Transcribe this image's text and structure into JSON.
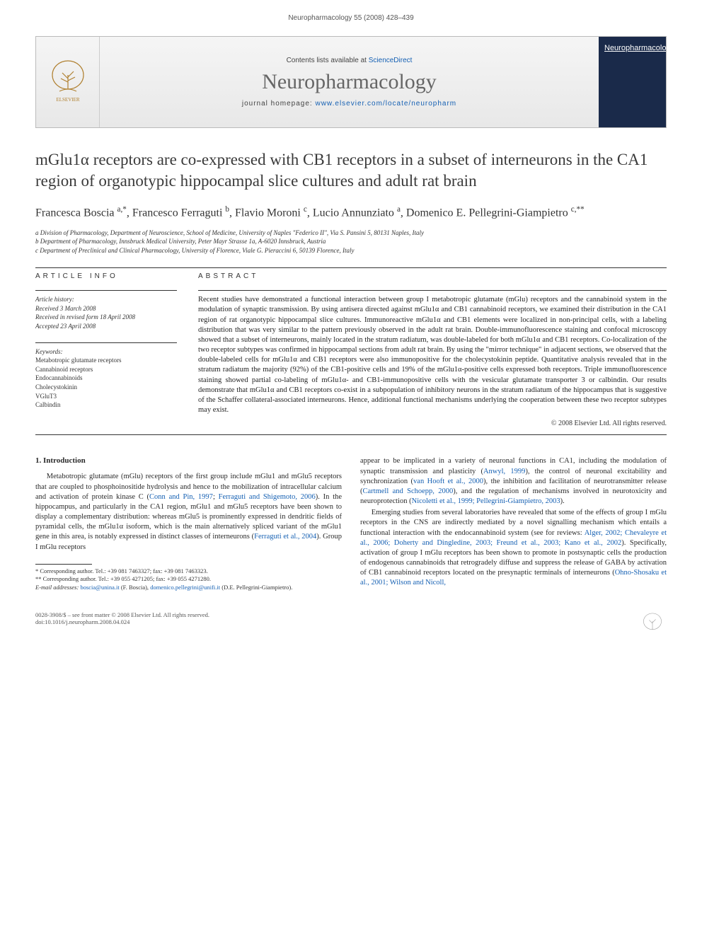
{
  "page_header": "Neuropharmacology 55 (2008) 428–439",
  "banner": {
    "contents_prefix": "Contents lists available at ",
    "contents_link": "ScienceDirect",
    "journal": "Neuropharmacology",
    "homepage_prefix": "journal homepage: ",
    "homepage_url": "www.elsevier.com/locate/neuropharm",
    "cover_label": "Neuropharmacology"
  },
  "title": "mGlu1α receptors are co-expressed with CB1 receptors in a subset of interneurons in the CA1 region of organotypic hippocampal slice cultures and adult rat brain",
  "authors_html": "Francesca Boscia <span class='sup'>a,*</span>, Francesco Ferraguti <span class='sup'>b</span>, Flavio Moroni <span class='sup'>c</span>, Lucio Annunziato <span class='sup'>a</span>, Domenico E. Pellegrini-Giampietro <span class='sup'>c,**</span>",
  "affiliations": [
    "a Division of Pharmacology, Department of Neuroscience, School of Medicine, University of Naples \"Federico II\", Via S. Pansini 5, 80131 Naples, Italy",
    "b Department of Pharmacology, Innsbruck Medical University, Peter Mayr Strasse 1a, A-6020 Innsbruck, Austria",
    "c Department of Preclinical and Clinical Pharmacology, University of Florence, Viale G. Pieraccini 6, 50139 Florence, Italy"
  ],
  "info": {
    "section_label": "ARTICLE INFO",
    "history_label": "Article history:",
    "received": "Received 3 March 2008",
    "revised": "Received in revised form 18 April 2008",
    "accepted": "Accepted 23 April 2008",
    "keywords_label": "Keywords:",
    "keywords": [
      "Metabotropic glutamate receptors",
      "Cannabinoid receptors",
      "Endocannabinoids",
      "Cholecystokinin",
      "VGluT3",
      "Calbindin"
    ]
  },
  "abstract": {
    "label": "ABSTRACT",
    "text": "Recent studies have demonstrated a functional interaction between group I metabotropic glutamate (mGlu) receptors and the cannabinoid system in the modulation of synaptic transmission. By using antisera directed against mGlu1α and CB1 cannabinoid receptors, we examined their distribution in the CA1 region of rat organotypic hippocampal slice cultures. Immunoreactive mGlu1α and CB1 elements were localized in non-principal cells, with a labeling distribution that was very similar to the pattern previously observed in the adult rat brain. Double-immunofluorescence staining and confocal microscopy showed that a subset of interneurons, mainly located in the stratum radiatum, was double-labeled for both mGlu1α and CB1 receptors. Co-localization of the two receptor subtypes was confirmed in hippocampal sections from adult rat brain. By using the \"mirror technique\" in adjacent sections, we observed that the double-labeled cells for mGlu1α and CB1 receptors were also immunopositive for the cholecystokinin peptide. Quantitative analysis revealed that in the stratum radiatum the majority (92%) of the CB1-positive cells and 19% of the mGlu1α-positive cells expressed both receptors. Triple immunofluorescence staining showed partial co-labeling of mGlu1α- and CB1-immunopositive cells with the vesicular glutamate transporter 3 or calbindin. Our results demonstrate that mGlu1α and CB1 receptors co-exist in a subpopulation of inhibitory neurons in the stratum radiatum of the hippocampus that is suggestive of the Schaffer collateral-associated interneurons. Hence, additional functional mechanisms underlying the cooperation between these two receptor subtypes may exist.",
    "copyright": "© 2008 Elsevier Ltd. All rights reserved."
  },
  "body": {
    "intro_heading": "1. Introduction",
    "col1_p1_pre": "Metabotropic glutamate (mGlu) receptors of the first group include mGlu1 and mGlu5 receptors that are coupled to phosphoinositide hydrolysis and hence to the mobilization of intracellular calcium and activation of protein kinase C (",
    "col1_p1_link1": "Conn and Pin, 1997",
    "col1_p1_mid1": "; ",
    "col1_p1_link2": "Ferraguti and Shigemoto, 2006",
    "col1_p1_mid2": "). In the hippocampus, and particularly in the CA1 region, mGlu1 and mGlu5 receptors have been shown to display a complementary distribution: whereas mGlu5 is prominently expressed in dendritic fields of pyramidal cells, the mGlu1α isoform, which is the main alternatively spliced variant of the mGlu1 gene in this area, is notably expressed in distinct classes of interneurons (",
    "col1_p1_link3": "Ferraguti et al., 2004",
    "col1_p1_post": "). Group I mGlu receptors",
    "col2_p1_pre": "appear to be implicated in a variety of neuronal functions in CA1, including the modulation of synaptic transmission and plasticity (",
    "col2_p1_link1": "Anwyl, 1999",
    "col2_p1_mid1": "), the control of neuronal excitability and synchronization (",
    "col2_p1_link2": "van Hooft et al., 2000",
    "col2_p1_mid2": "), the inhibition and facilitation of neurotransmitter release (",
    "col2_p1_link3": "Cartmell and Schoepp, 2000",
    "col2_p1_mid3": "), and the regulation of mechanisms involved in neurotoxicity and neuroprotection (",
    "col2_p1_link4": "Nicoletti et al., 1999; Pellegrini-Giampietro, 2003",
    "col2_p1_post": ").",
    "col2_p2_pre": "Emerging studies from several laboratories have revealed that some of the effects of group I mGlu receptors in the CNS are indirectly mediated by a novel signalling mechanism which entails a functional interaction with the endocannabinoid system (see for reviews: ",
    "col2_p2_link1": "Alger, 2002; Chevaleyre et al., 2006; Doherty and Dingledine, 2003; Freund et al., 2003; Kano et al., 2002",
    "col2_p2_mid1": "). Specifically, activation of group I mGlu receptors has been shown to promote in postsynaptic cells the production of endogenous cannabinoids that retrogradely diffuse and suppress the release of GABA by activation of CB1 cannabinoid receptors located on the presynaptic terminals of interneurons (",
    "col2_p2_link2": "Ohno-Shosaku et al., 2001; Wilson and Nicoll,",
    "col2_p2_post": ""
  },
  "footnotes": {
    "corr1": "* Corresponding author. Tel.: +39 081 7463327; fax: +39 081 7463323.",
    "corr2": "** Corresponding author. Tel.: +39 055 4271205; fax: +39 055 4271280.",
    "emails_label": "E-mail addresses: ",
    "email1": "boscia@unina.it",
    "email1_name": " (F. Boscia), ",
    "email2": "domenico.pellegrini@unifi.it",
    "email2_name": " (D.E. Pellegrini-Giampietro)."
  },
  "footer": {
    "left_line1": "0028-3908/$ – see front matter © 2008 Elsevier Ltd. All rights reserved.",
    "left_line2": "doi:10.1016/j.neuropharm.2008.04.024"
  },
  "colors": {
    "link": "#1560b3",
    "text": "#2a2a2a",
    "banner_border": "#bbbbbb",
    "cover_bg": "#1a2a4a"
  }
}
